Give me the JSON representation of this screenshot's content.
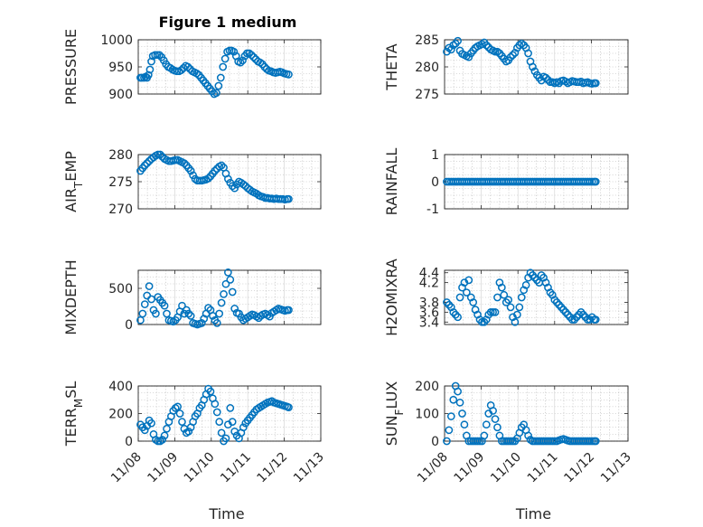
{
  "figure_title": "Figure 1 medium",
  "colors": {
    "series": "#0072BD",
    "axis": "#262626"
  },
  "chart_data": [
    {
      "type": "scatter",
      "ylabel": "PRESSURE",
      "ylabel_parts": [
        {
          "t": "PRESSURE"
        }
      ],
      "ylim": [
        900,
        1000
      ],
      "yticks": [
        900,
        950,
        1000
      ],
      "yticklabels": [
        "900",
        "950",
        "1000"
      ],
      "xlim": [
        0,
        5
      ],
      "grid": "on",
      "marker": "circle",
      "x": [
        0.06,
        0.1,
        0.16,
        0.2,
        0.24,
        0.28,
        0.32,
        0.36,
        0.4,
        0.46,
        0.52,
        0.58,
        0.64,
        0.7,
        0.76,
        0.82,
        0.88,
        0.94,
        1.0,
        1.06,
        1.12,
        1.18,
        1.24,
        1.3,
        1.36,
        1.42,
        1.48,
        1.54,
        1.6,
        1.66,
        1.72,
        1.78,
        1.84,
        1.9,
        1.96,
        2.02,
        2.08,
        2.14,
        2.2,
        2.26,
        2.32,
        2.38,
        2.44,
        2.5,
        2.56,
        2.62,
        2.68,
        2.74,
        2.8,
        2.86,
        2.92,
        2.98,
        3.04,
        3.1,
        3.16,
        3.22,
        3.28,
        3.34,
        3.4,
        3.46,
        3.52,
        3.58,
        3.64,
        3.7,
        3.76,
        3.82,
        3.88,
        3.94,
        4.0,
        4.06,
        4.12
      ],
      "y": [
        930,
        930,
        930,
        932,
        930,
        935,
        945,
        960,
        970,
        972,
        972,
        972,
        968,
        962,
        955,
        950,
        948,
        945,
        943,
        942,
        942,
        944,
        948,
        952,
        950,
        946,
        942,
        940,
        938,
        935,
        930,
        925,
        920,
        915,
        910,
        905,
        900,
        902,
        915,
        930,
        950,
        965,
        978,
        980,
        980,
        978,
        970,
        960,
        958,
        962,
        970,
        975,
        975,
        972,
        968,
        964,
        960,
        958,
        955,
        950,
        946,
        943,
        942,
        940,
        939,
        940,
        941,
        940,
        938,
        937,
        936
      ]
    },
    {
      "type": "scatter",
      "ylabel": "THETA",
      "ylabel_parts": [
        {
          "t": "THETA"
        }
      ],
      "ylim": [
        275,
        285
      ],
      "yticks": [
        275,
        280,
        285
      ],
      "yticklabels": [
        "275",
        "280",
        "285"
      ],
      "xlim": [
        0,
        5
      ],
      "grid": "on",
      "marker": "circle",
      "x": [
        0.06,
        0.12,
        0.18,
        0.24,
        0.3,
        0.36,
        0.42,
        0.48,
        0.54,
        0.6,
        0.66,
        0.72,
        0.78,
        0.84,
        0.9,
        0.96,
        1.02,
        1.08,
        1.14,
        1.2,
        1.26,
        1.32,
        1.38,
        1.44,
        1.5,
        1.56,
        1.62,
        1.68,
        1.74,
        1.8,
        1.86,
        1.92,
        1.98,
        2.04,
        2.1,
        2.16,
        2.22,
        2.28,
        2.34,
        2.4,
        2.46,
        2.52,
        2.58,
        2.64,
        2.7,
        2.76,
        2.82,
        2.88,
        2.94,
        3.0,
        3.06,
        3.12,
        3.18,
        3.24,
        3.3,
        3.36,
        3.42,
        3.48,
        3.54,
        3.6,
        3.66,
        3.72,
        3.78,
        3.84,
        3.9,
        3.96,
        4.02,
        4.08,
        4.12
      ],
      "y": [
        282.8,
        283.5,
        283.2,
        284.0,
        284.3,
        284.8,
        283.0,
        282.4,
        282.2,
        282.0,
        281.8,
        282.5,
        283.0,
        283.5,
        283.8,
        284.0,
        284.2,
        284.5,
        284.0,
        283.6,
        283.2,
        283.0,
        282.8,
        282.8,
        282.5,
        282.0,
        281.5,
        281.0,
        281.2,
        281.8,
        282.2,
        282.6,
        283.5,
        284.0,
        284.3,
        284.0,
        283.5,
        282.5,
        281.0,
        280.0,
        279.2,
        278.5,
        278.0,
        277.5,
        278.2,
        278.0,
        277.6,
        277.2,
        277.2,
        277.0,
        277.2,
        277.0,
        277.4,
        277.5,
        277.3,
        277.0,
        277.2,
        277.4,
        277.3,
        277.2,
        277.2,
        277.3,
        277.0,
        277.1,
        277.2,
        277.0,
        276.9,
        277.0,
        277.0
      ]
    },
    {
      "type": "scatter",
      "ylabel": "AIR_TEMP",
      "ylabel_parts": [
        {
          "t": "AIR"
        },
        {
          "t": "T",
          "sub": true
        },
        {
          "t": "EMP"
        }
      ],
      "ylim": [
        270,
        280
      ],
      "yticks": [
        270,
        275,
        280
      ],
      "yticklabels": [
        "270",
        "275",
        "280"
      ],
      "xlim": [
        0,
        5
      ],
      "grid": "on",
      "marker": "circle",
      "x": [
        0.06,
        0.12,
        0.18,
        0.24,
        0.3,
        0.36,
        0.42,
        0.48,
        0.54,
        0.6,
        0.66,
        0.72,
        0.78,
        0.84,
        0.9,
        0.96,
        1.02,
        1.08,
        1.14,
        1.2,
        1.26,
        1.32,
        1.38,
        1.44,
        1.5,
        1.56,
        1.62,
        1.68,
        1.74,
        1.8,
        1.86,
        1.92,
        1.98,
        2.04,
        2.1,
        2.16,
        2.22,
        2.28,
        2.34,
        2.4,
        2.46,
        2.52,
        2.58,
        2.64,
        2.7,
        2.76,
        2.82,
        2.88,
        2.94,
        3.0,
        3.06,
        3.12,
        3.18,
        3.24,
        3.3,
        3.36,
        3.42,
        3.48,
        3.54,
        3.6,
        3.66,
        3.72,
        3.78,
        3.84,
        3.9,
        3.96,
        4.02,
        4.08,
        4.12
      ],
      "y": [
        277.0,
        277.5,
        278.0,
        278.4,
        278.8,
        279.2,
        279.5,
        279.8,
        280.0,
        280.0,
        279.6,
        279.2,
        279.0,
        278.8,
        278.8,
        278.9,
        279.0,
        279.0,
        278.8,
        278.6,
        278.4,
        278.0,
        277.5,
        277.0,
        276.2,
        275.5,
        275.2,
        275.2,
        275.2,
        275.3,
        275.4,
        275.6,
        276.0,
        276.5,
        277.0,
        277.4,
        277.8,
        278.0,
        277.6,
        276.5,
        275.5,
        274.8,
        274.2,
        273.8,
        274.5,
        275.0,
        274.8,
        274.5,
        274.2,
        273.8,
        273.5,
        273.2,
        273.0,
        272.8,
        272.5,
        272.3,
        272.2,
        272.0,
        272.0,
        271.9,
        271.9,
        271.8,
        271.9,
        271.8,
        271.8,
        271.8,
        271.7,
        271.8,
        271.8
      ]
    },
    {
      "type": "scatter",
      "ylabel": "RAINFALL",
      "ylabel_parts": [
        {
          "t": "RAINFALL"
        }
      ],
      "ylim": [
        -1,
        1
      ],
      "yticks": [
        -1,
        0,
        1
      ],
      "yticklabels": [
        "-1",
        "0",
        "1"
      ],
      "xlim": [
        0,
        5
      ],
      "grid": "on",
      "marker": "circle",
      "x": [
        0.06,
        0.12,
        0.18,
        0.24,
        0.3,
        0.36,
        0.42,
        0.48,
        0.54,
        0.6,
        0.66,
        0.72,
        0.78,
        0.84,
        0.9,
        0.96,
        1.02,
        1.08,
        1.14,
        1.2,
        1.26,
        1.32,
        1.38,
        1.44,
        1.5,
        1.56,
        1.62,
        1.68,
        1.74,
        1.8,
        1.86,
        1.92,
        1.98,
        2.04,
        2.1,
        2.16,
        2.22,
        2.28,
        2.34,
        2.4,
        2.46,
        2.52,
        2.58,
        2.64,
        2.7,
        2.76,
        2.82,
        2.88,
        2.94,
        3.0,
        3.06,
        3.12,
        3.18,
        3.24,
        3.3,
        3.36,
        3.42,
        3.48,
        3.54,
        3.6,
        3.66,
        3.72,
        3.78,
        3.84,
        3.9,
        3.96,
        4.02,
        4.08,
        4.12
      ],
      "y": [
        0,
        0,
        0,
        0,
        0,
        0,
        0,
        0,
        0,
        0,
        0,
        0,
        0,
        0,
        0,
        0,
        0,
        0,
        0,
        0,
        0,
        0,
        0,
        0,
        0,
        0,
        0,
        0,
        0,
        0,
        0,
        0,
        0,
        0,
        0,
        0,
        0,
        0,
        0,
        0,
        0,
        0,
        0,
        0,
        0,
        0,
        0,
        0,
        0,
        0,
        0,
        0,
        0,
        0,
        0,
        0,
        0,
        0,
        0,
        0,
        0,
        0,
        0,
        0,
        0,
        0,
        0,
        0,
        0
      ]
    },
    {
      "type": "scatter",
      "ylabel": "MIXDEPTH",
      "ylabel_parts": [
        {
          "t": "MIXDEPTH"
        }
      ],
      "ylim": [
        0,
        750
      ],
      "yticks": [
        0,
        500
      ],
      "yticklabels": [
        "0",
        "500"
      ],
      "xlim": [
        0,
        5
      ],
      "grid": "on",
      "marker": "circle",
      "x": [
        0.06,
        0.12,
        0.18,
        0.24,
        0.3,
        0.36,
        0.42,
        0.48,
        0.54,
        0.6,
        0.66,
        0.72,
        0.78,
        0.84,
        0.9,
        0.96,
        1.02,
        1.08,
        1.14,
        1.2,
        1.26,
        1.32,
        1.38,
        1.44,
        1.5,
        1.56,
        1.62,
        1.68,
        1.74,
        1.8,
        1.86,
        1.92,
        1.98,
        2.04,
        2.1,
        2.16,
        2.22,
        2.28,
        2.34,
        2.4,
        2.46,
        2.52,
        2.58,
        2.64,
        2.7,
        2.76,
        2.82,
        2.88,
        2.94,
        3.0,
        3.06,
        3.12,
        3.18,
        3.24,
        3.3,
        3.36,
        3.42,
        3.48,
        3.54,
        3.6,
        3.66,
        3.72,
        3.78,
        3.84,
        3.9,
        3.96,
        4.02,
        4.08,
        4.12
      ],
      "y": [
        60,
        150,
        280,
        400,
        530,
        350,
        200,
        150,
        380,
        340,
        300,
        260,
        150,
        60,
        50,
        40,
        60,
        100,
        180,
        260,
        150,
        200,
        150,
        120,
        20,
        10,
        0,
        10,
        20,
        80,
        150,
        230,
        200,
        120,
        60,
        20,
        150,
        300,
        420,
        560,
        720,
        620,
        450,
        220,
        160,
        150,
        100,
        60,
        80,
        100,
        120,
        140,
        130,
        110,
        90,
        120,
        140,
        150,
        130,
        110,
        160,
        180,
        200,
        220,
        210,
        200,
        190,
        200,
        200
      ]
    },
    {
      "type": "scatter",
      "ylabel": "H2OMIXRA",
      "ylabel_parts": [
        {
          "t": "H2OMIXRA"
        }
      ],
      "ylim": [
        3.35,
        4.45
      ],
      "yticks": [
        3.4,
        3.6,
        3.8,
        4.2,
        4.4
      ],
      "yticklabels": [
        "3.4",
        "3.6",
        "3.8",
        "4.2",
        "4.4"
      ],
      "xlim": [
        0,
        5
      ],
      "grid": "on",
      "marker": "circle",
      "x": [
        0.06,
        0.12,
        0.18,
        0.24,
        0.3,
        0.36,
        0.42,
        0.48,
        0.54,
        0.6,
        0.66,
        0.72,
        0.78,
        0.84,
        0.9,
        0.96,
        1.02,
        1.08,
        1.14,
        1.2,
        1.26,
        1.32,
        1.38,
        1.44,
        1.5,
        1.56,
        1.62,
        1.68,
        1.74,
        1.8,
        1.86,
        1.92,
        1.98,
        2.04,
        2.1,
        2.16,
        2.22,
        2.28,
        2.34,
        2.4,
        2.46,
        2.52,
        2.58,
        2.64,
        2.7,
        2.76,
        2.82,
        2.88,
        2.94,
        3.0,
        3.06,
        3.12,
        3.18,
        3.24,
        3.3,
        3.36,
        3.42,
        3.48,
        3.54,
        3.6,
        3.66,
        3.72,
        3.78,
        3.84,
        3.9,
        3.96,
        4.02,
        4.08,
        4.12
      ],
      "y": [
        3.8,
        3.75,
        3.7,
        3.6,
        3.55,
        3.5,
        3.9,
        4.1,
        4.2,
        4.0,
        4.25,
        3.9,
        3.8,
        3.65,
        3.55,
        3.45,
        3.4,
        3.4,
        3.45,
        3.55,
        3.6,
        3.6,
        3.6,
        3.9,
        4.2,
        4.1,
        3.95,
        3.8,
        3.85,
        3.7,
        3.5,
        3.4,
        3.55,
        3.7,
        3.9,
        4.05,
        4.15,
        4.3,
        4.4,
        4.35,
        4.3,
        4.25,
        4.2,
        4.35,
        4.3,
        4.2,
        4.1,
        4.0,
        3.95,
        3.85,
        3.8,
        3.75,
        3.7,
        3.65,
        3.6,
        3.55,
        3.5,
        3.45,
        3.45,
        3.5,
        3.55,
        3.6,
        3.55,
        3.5,
        3.45,
        3.45,
        3.5,
        3.45,
        3.45
      ]
    },
    {
      "type": "scatter",
      "ylabel": "TERR_MSL",
      "ylabel_parts": [
        {
          "t": "TERR"
        },
        {
          "t": "M",
          "sub": true
        },
        {
          "t": "SL"
        }
      ],
      "ylim": [
        0,
        400
      ],
      "yticks": [
        0,
        200,
        400
      ],
      "yticklabels": [
        "0",
        "200",
        "400"
      ],
      "xlim": [
        0,
        5
      ],
      "grid": "on",
      "marker": "circle",
      "x": [
        0.06,
        0.12,
        0.18,
        0.24,
        0.3,
        0.36,
        0.42,
        0.48,
        0.54,
        0.6,
        0.66,
        0.72,
        0.78,
        0.84,
        0.9,
        0.96,
        1.02,
        1.08,
        1.14,
        1.2,
        1.26,
        1.32,
        1.38,
        1.44,
        1.5,
        1.56,
        1.62,
        1.68,
        1.74,
        1.8,
        1.86,
        1.92,
        1.98,
        2.04,
        2.1,
        2.16,
        2.22,
        2.28,
        2.34,
        2.4,
        2.46,
        2.52,
        2.58,
        2.64,
        2.7,
        2.76,
        2.82,
        2.88,
        2.94,
        3.0,
        3.06,
        3.12,
        3.18,
        3.24,
        3.3,
        3.36,
        3.42,
        3.48,
        3.54,
        3.6,
        3.66,
        3.72,
        3.78,
        3.84,
        3.9,
        3.96,
        4.02,
        4.08,
        4.12
      ],
      "y": [
        120,
        100,
        80,
        110,
        150,
        130,
        50,
        10,
        0,
        0,
        10,
        40,
        90,
        140,
        180,
        220,
        240,
        250,
        200,
        140,
        90,
        60,
        70,
        100,
        140,
        180,
        200,
        240,
        260,
        300,
        340,
        380,
        360,
        310,
        270,
        210,
        140,
        60,
        0,
        20,
        120,
        240,
        140,
        70,
        40,
        20,
        60,
        100,
        130,
        150,
        170,
        190,
        210,
        230,
        240,
        250,
        260,
        270,
        280,
        285,
        290,
        280,
        275,
        270,
        265,
        260,
        255,
        250,
        245
      ]
    },
    {
      "type": "scatter",
      "ylabel": "SUN_FLUX",
      "ylabel_parts": [
        {
          "t": "SUN"
        },
        {
          "t": "F",
          "sub": true
        },
        {
          "t": "LUX"
        }
      ],
      "ylim": [
        0,
        200
      ],
      "yticks": [
        0,
        100,
        200
      ],
      "yticklabels": [
        "0",
        "100",
        "200"
      ],
      "xlim": [
        0,
        5
      ],
      "grid": "on",
      "marker": "circle",
      "x": [
        0.06,
        0.12,
        0.18,
        0.24,
        0.3,
        0.36,
        0.42,
        0.48,
        0.54,
        0.6,
        0.66,
        0.72,
        0.78,
        0.84,
        0.9,
        0.96,
        1.02,
        1.08,
        1.14,
        1.2,
        1.26,
        1.32,
        1.38,
        1.44,
        1.5,
        1.56,
        1.62,
        1.68,
        1.74,
        1.8,
        1.86,
        1.92,
        1.98,
        2.04,
        2.1,
        2.16,
        2.22,
        2.28,
        2.34,
        2.4,
        2.46,
        2.52,
        2.58,
        2.64,
        2.7,
        2.76,
        2.82,
        2.88,
        2.94,
        3.0,
        3.06,
        3.12,
        3.18,
        3.24,
        3.3,
        3.36,
        3.42,
        3.48,
        3.54,
        3.6,
        3.66,
        3.72,
        3.78,
        3.84,
        3.9,
        3.96,
        4.02,
        4.08,
        4.12
      ],
      "y": [
        0,
        40,
        90,
        150,
        200,
        180,
        140,
        100,
        60,
        20,
        0,
        0,
        0,
        0,
        0,
        0,
        0,
        20,
        60,
        100,
        130,
        110,
        80,
        50,
        20,
        0,
        0,
        0,
        0,
        0,
        0,
        0,
        10,
        30,
        50,
        60,
        40,
        20,
        5,
        0,
        0,
        0,
        0,
        0,
        0,
        0,
        0,
        0,
        0,
        0,
        0,
        3,
        6,
        8,
        5,
        2,
        0,
        0,
        0,
        0,
        0,
        0,
        0,
        0,
        0,
        0,
        0,
        0,
        0
      ]
    }
  ],
  "x_axis": {
    "xlabel": "Time",
    "ticks": [
      0,
      1,
      2,
      3,
      4,
      5
    ],
    "ticklabels": [
      "11/08",
      "11/09",
      "11/10",
      "11/11",
      "11/12",
      "11/13"
    ]
  }
}
